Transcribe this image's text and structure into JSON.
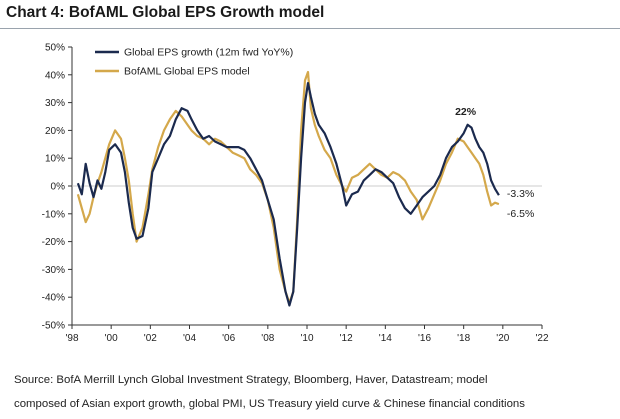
{
  "header": {
    "title": "Chart 4: BofAML Global EPS Growth model"
  },
  "chart_data": {
    "type": "line",
    "title": "Chart 4: BofAML Global EPS Growth model",
    "xlabel": "",
    "ylabel": "",
    "x_tick_labels": [
      "'98",
      "'00",
      "'02",
      "'04",
      "'06",
      "'08",
      "'10",
      "'12",
      "'14",
      "'16",
      "'18",
      "'20",
      "'22"
    ],
    "x_tick_values": [
      1998,
      2000,
      2002,
      2004,
      2006,
      2008,
      2010,
      2012,
      2014,
      2016,
      2018,
      2020,
      2022
    ],
    "y_tick_labels": [
      "50%",
      "40%",
      "30%",
      "20%",
      "10%",
      "0%",
      "-10%",
      "-20%",
      "-30%",
      "-40%",
      "-50%"
    ],
    "y_tick_values": [
      50,
      40,
      30,
      20,
      10,
      0,
      -10,
      -20,
      -30,
      -40,
      -50
    ],
    "xlim": [
      1998,
      2022
    ],
    "ylim": [
      -50,
      50
    ],
    "grid": false,
    "legend_position": "top-left",
    "series": [
      {
        "name": "Global EPS growth (12m fwd YoY%)",
        "color": "#1b2a4e",
        "x": [
          1998.3,
          1998.5,
          1998.7,
          1998.9,
          1999.1,
          1999.3,
          1999.5,
          1999.7,
          1999.9,
          2000.2,
          2000.5,
          2000.7,
          2000.9,
          2001.1,
          2001.3,
          2001.6,
          2001.9,
          2002.1,
          2002.4,
          2002.7,
          2003.0,
          2003.3,
          2003.6,
          2003.9,
          2004.1,
          2004.4,
          2004.7,
          2005.0,
          2005.3,
          2005.6,
          2005.9,
          2006.2,
          2006.5,
          2006.8,
          2007.1,
          2007.4,
          2007.7,
          2008.0,
          2008.3,
          2008.6,
          2008.9,
          2009.1,
          2009.3,
          2009.5,
          2009.7,
          2009.9,
          2010.05,
          2010.2,
          2010.4,
          2010.6,
          2010.9,
          2011.2,
          2011.5,
          2011.8,
          2012.0,
          2012.3,
          2012.6,
          2012.9,
          2013.2,
          2013.5,
          2013.8,
          2014.1,
          2014.4,
          2014.7,
          2015.0,
          2015.3,
          2015.6,
          2015.9,
          2016.2,
          2016.5,
          2016.8,
          2017.1,
          2017.4,
          2017.7,
          2018.0,
          2018.2,
          2018.4,
          2018.6,
          2018.8,
          2019.0,
          2019.2,
          2019.4,
          2019.6,
          2019.8
        ],
        "values": [
          1,
          -3,
          8,
          1,
          -4,
          2,
          -1,
          5,
          13,
          15,
          12,
          5,
          -6,
          -15,
          -19,
          -18,
          -8,
          5,
          10,
          15,
          18,
          24,
          28,
          27,
          24,
          20,
          17,
          18,
          16,
          15,
          14,
          14,
          14,
          13,
          10,
          6,
          2,
          -5,
          -12,
          -26,
          -38,
          -43,
          -38,
          -15,
          10,
          30,
          37,
          32,
          26,
          22,
          19,
          14,
          8,
          0,
          -7,
          -3,
          -2,
          2,
          4,
          6,
          5,
          3,
          1,
          -4,
          -8,
          -10,
          -7,
          -4,
          -2,
          0,
          4,
          10,
          14,
          16,
          19,
          22,
          21,
          17,
          14,
          12,
          8,
          2,
          -1,
          -3.3
        ]
      },
      {
        "name": "BofAML Global EPS model",
        "color": "#d4a84b",
        "x": [
          1998.3,
          1998.5,
          1998.7,
          1998.9,
          1999.1,
          1999.3,
          1999.5,
          1999.7,
          1999.9,
          2000.2,
          2000.5,
          2000.7,
          2000.9,
          2001.1,
          2001.3,
          2001.6,
          2001.9,
          2002.1,
          2002.4,
          2002.7,
          2003.0,
          2003.3,
          2003.6,
          2003.9,
          2004.1,
          2004.4,
          2004.7,
          2005.0,
          2005.3,
          2005.6,
          2005.9,
          2006.2,
          2006.5,
          2006.8,
          2007.1,
          2007.4,
          2007.7,
          2008.0,
          2008.3,
          2008.6,
          2008.9,
          2009.1,
          2009.3,
          2009.5,
          2009.7,
          2009.9,
          2010.05,
          2010.2,
          2010.4,
          2010.6,
          2010.9,
          2011.2,
          2011.5,
          2011.8,
          2012.0,
          2012.3,
          2012.6,
          2012.9,
          2013.2,
          2013.5,
          2013.8,
          2014.1,
          2014.4,
          2014.7,
          2015.0,
          2015.3,
          2015.6,
          2015.9,
          2016.2,
          2016.5,
          2016.8,
          2017.1,
          2017.4,
          2017.7,
          2018.0,
          2018.2,
          2018.4,
          2018.6,
          2018.8,
          2019.0,
          2019.2,
          2019.4,
          2019.6,
          2019.8
        ],
        "values": [
          -3,
          -8,
          -13,
          -10,
          -4,
          1,
          5,
          10,
          15,
          20,
          17,
          10,
          2,
          -10,
          -20,
          -15,
          -3,
          6,
          14,
          20,
          24,
          27,
          25,
          22,
          20,
          18,
          17,
          15,
          17,
          16,
          14,
          12,
          11,
          10,
          6,
          4,
          1,
          -5,
          -15,
          -30,
          -38,
          -42,
          -38,
          -12,
          20,
          38,
          41,
          28,
          22,
          18,
          13,
          10,
          4,
          0,
          -2,
          3,
          4,
          6,
          8,
          6,
          4,
          3,
          5,
          4,
          2,
          -2,
          -5,
          -12,
          -8,
          -3,
          2,
          8,
          12,
          17,
          16,
          14,
          12,
          10,
          8,
          4,
          -2,
          -7,
          -6,
          -6.5
        ]
      }
    ],
    "annotations": [
      {
        "text": "22%",
        "x": 2018.2,
        "y": 22
      },
      {
        "text": "-3.3%",
        "x": 2019.8,
        "y": -3.3
      },
      {
        "text": "-6.5%",
        "x": 2019.8,
        "y": -6.5
      }
    ]
  },
  "footer": {
    "source_line1": "Source: BofA Merrill Lynch Global Investment Strategy, Bloomberg, Haver, Datastream; model",
    "source_line2": "composed of Asian export growth, global PMI, US Treasury yield curve & Chinese financial conditions"
  }
}
